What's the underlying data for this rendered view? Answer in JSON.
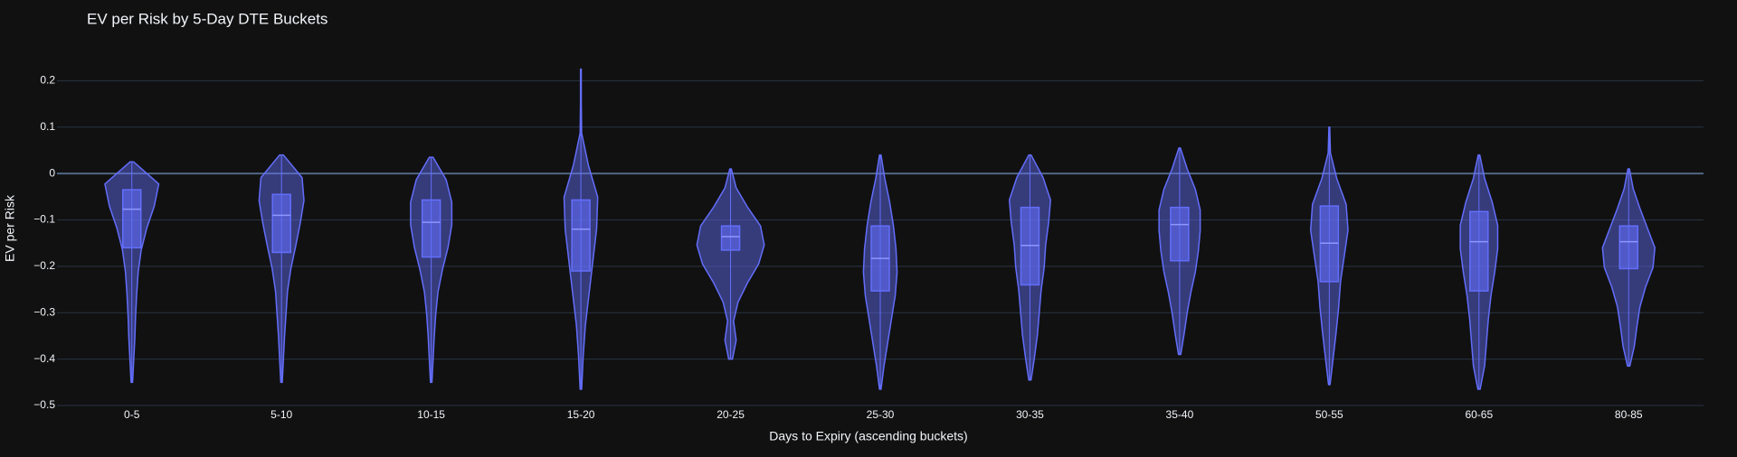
{
  "chart_data": {
    "type": "violin",
    "title": "EV per Risk by 5-Day DTE Buckets",
    "x_label": "Days to Expiry (ascending buckets)",
    "y_label": "EV per Risk",
    "color": "#636efa",
    "categories": [
      "0-5",
      "5-10",
      "10-15",
      "15-20",
      "20-25",
      "25-30",
      "30-35",
      "35-40",
      "50-55",
      "60-65",
      "80-85"
    ],
    "min": [
      -0.45,
      -0.45,
      -0.45,
      -0.465,
      -0.4,
      -0.465,
      -0.445,
      -0.39,
      -0.455,
      -0.465,
      -0.415
    ],
    "q1": [
      -0.16,
      -0.17,
      -0.18,
      -0.21,
      -0.165,
      -0.253,
      -0.24,
      -0.188,
      -0.233,
      -0.253,
      -0.205
    ],
    "median": [
      -0.077,
      -0.09,
      -0.105,
      -0.12,
      -0.136,
      -0.183,
      -0.155,
      -0.11,
      -0.15,
      -0.147,
      -0.147
    ],
    "q3": [
      -0.035,
      -0.045,
      -0.057,
      -0.057,
      -0.113,
      -0.113,
      -0.073,
      -0.073,
      -0.07,
      -0.082,
      -0.113
    ],
    "max": [
      0.025,
      0.04,
      0.035,
      0.225,
      0.01,
      0.04,
      0.04,
      0.055,
      0.1,
      0.04,
      0.01
    ],
    "density": [
      [
        0.02,
        0.05,
        0.08,
        0.1,
        0.13,
        0.17,
        0.25,
        0.4,
        0.6,
        0.72,
        0.05
      ],
      [
        0.02,
        0.05,
        0.08,
        0.12,
        0.16,
        0.25,
        0.38,
        0.5,
        0.6,
        0.55,
        0.05
      ],
      [
        0.02,
        0.05,
        0.08,
        0.12,
        0.18,
        0.3,
        0.45,
        0.55,
        0.55,
        0.4,
        0.05
      ],
      [
        0.02,
        0.06,
        0.12,
        0.22,
        0.32,
        0.42,
        0.45,
        0.2,
        0.02,
        0.01,
        0.01
      ],
      [
        0.05,
        0.15,
        0.08,
        0.2,
        0.45,
        0.75,
        0.9,
        0.8,
        0.45,
        0.15,
        0.02
      ],
      [
        0.02,
        0.1,
        0.2,
        0.3,
        0.4,
        0.45,
        0.42,
        0.35,
        0.25,
        0.12,
        0.02
      ],
      [
        0.03,
        0.12,
        0.2,
        0.25,
        0.3,
        0.38,
        0.42,
        0.5,
        0.55,
        0.35,
        0.03
      ],
      [
        0.03,
        0.12,
        0.2,
        0.3,
        0.42,
        0.5,
        0.55,
        0.55,
        0.42,
        0.2,
        0.02
      ],
      [
        0.02,
        0.1,
        0.18,
        0.25,
        0.3,
        0.4,
        0.5,
        0.45,
        0.2,
        0.03,
        0.01
      ],
      [
        0.03,
        0.15,
        0.2,
        0.25,
        0.32,
        0.42,
        0.5,
        0.5,
        0.35,
        0.15,
        0.02
      ],
      [
        0.03,
        0.15,
        0.22,
        0.3,
        0.45,
        0.65,
        0.7,
        0.5,
        0.3,
        0.12,
        0.02
      ]
    ],
    "ylim": [
      -0.5,
      0.3
    ],
    "yticks": [
      {
        "value": -0.5,
        "label": "−0.5"
      },
      {
        "value": -0.4,
        "label": "−0.4"
      },
      {
        "value": -0.3,
        "label": "−0.3"
      },
      {
        "value": -0.2,
        "label": "−0.2"
      },
      {
        "value": -0.1,
        "label": "−0.1"
      },
      0,
      0.1,
      0.2
    ],
    "grid": true
  }
}
